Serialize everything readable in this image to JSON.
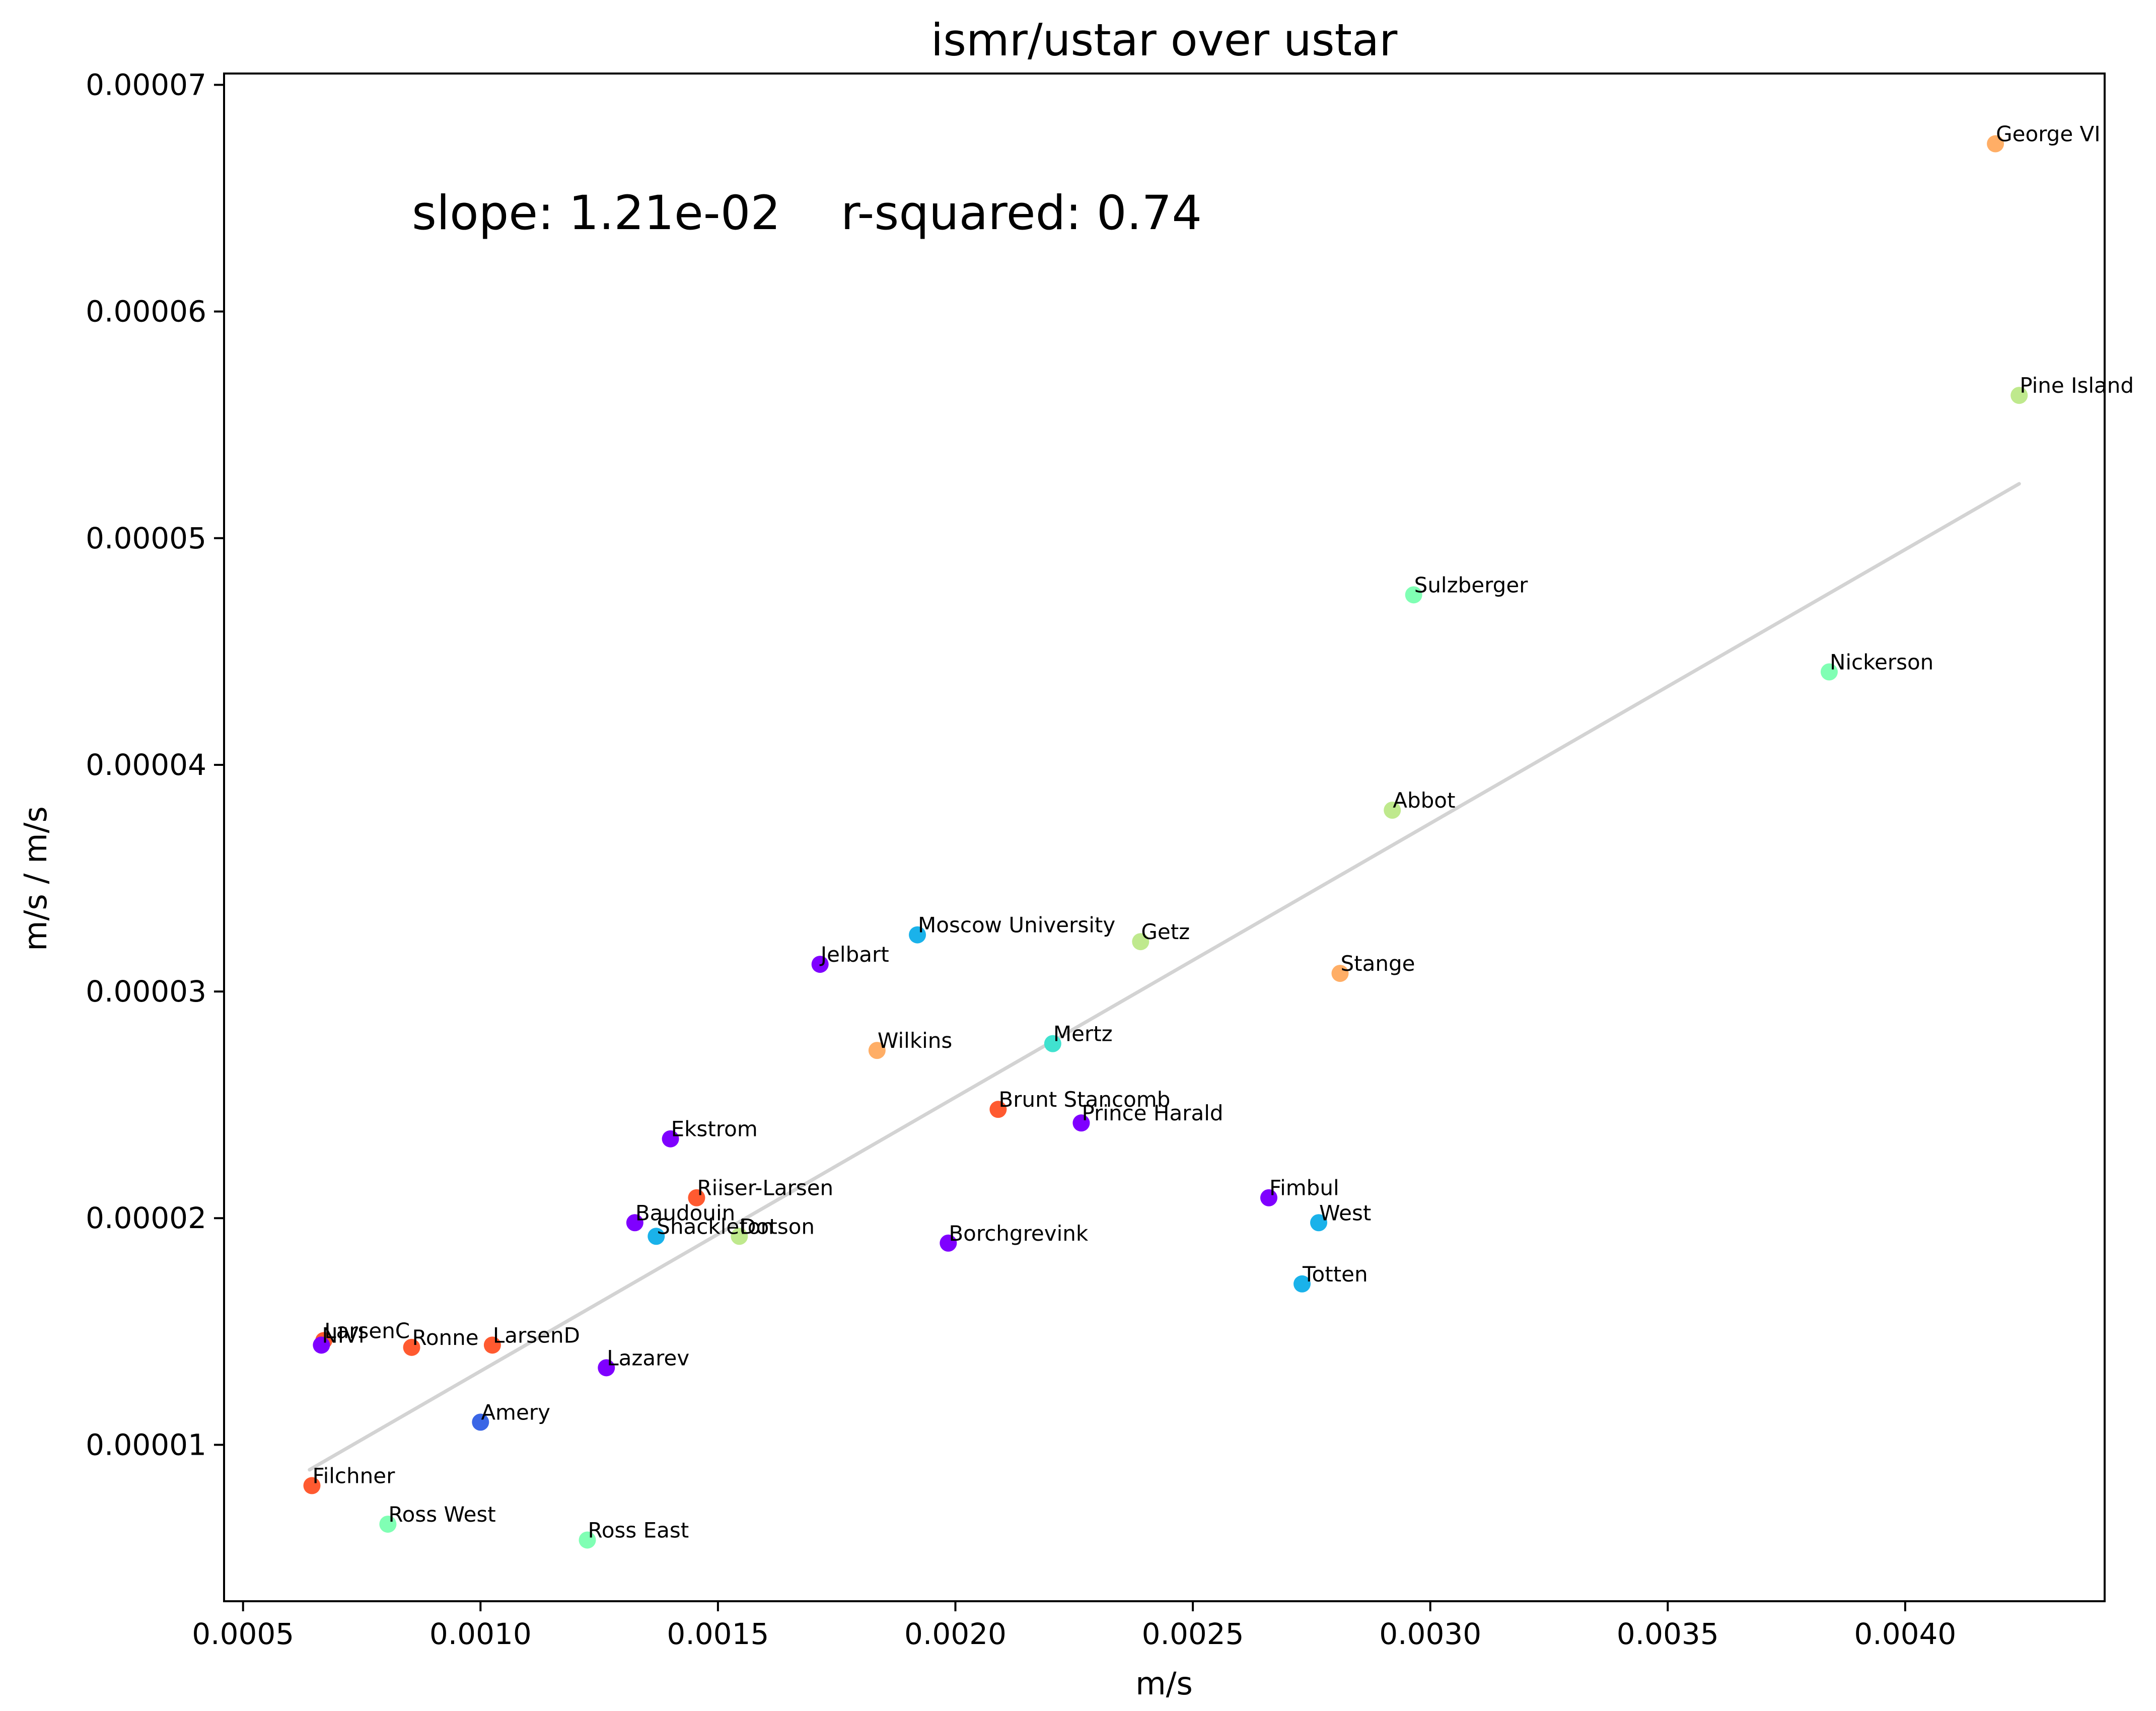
{
  "chart_data": {
    "type": "scatter",
    "title": "ismr/ustar over ustar",
    "xlabel": "m/s",
    "ylabel": "m/s / m/s",
    "xlim": [
      0.00046,
      0.00442
    ],
    "ylim": [
      3.1e-06,
      7.05e-05
    ],
    "xticks": [
      0.0005,
      0.001,
      0.0015,
      0.002,
      0.0025,
      0.003,
      0.0035,
      0.004
    ],
    "xtick_labels": [
      "0.0005",
      "0.0010",
      "0.0015",
      "0.0020",
      "0.0025",
      "0.0030",
      "0.0035",
      "0.0040"
    ],
    "yticks": [
      1e-05,
      2e-05,
      3e-05,
      4e-05,
      5e-05,
      6e-05,
      7e-05
    ],
    "ytick_labels": [
      "0.00001",
      "0.00002",
      "0.00003",
      "0.00004",
      "0.00005",
      "0.00006",
      "0.00007"
    ],
    "grid": false,
    "annotation": "slope: 1.21e-02    r-squared: 0.74",
    "fit_line": {
      "color": "#d3d3d3",
      "points": [
        [
          0.00064,
          8.9e-06
        ],
        [
          0.00424,
          5.24e-05
        ]
      ]
    },
    "points": [
      {
        "label": "George VI",
        "x": 0.00419,
        "y": 6.74e-05,
        "color": "#ffae66"
      },
      {
        "label": "Pine Island",
        "x": 0.00424,
        "y": 5.63e-05,
        "color": "#bfe98d"
      },
      {
        "label": "Sulzberger",
        "x": 0.002965,
        "y": 4.75e-05,
        "color": "#80ffb4"
      },
      {
        "label": "Nickerson",
        "x": 0.00384,
        "y": 4.41e-05,
        "color": "#80ffb4"
      },
      {
        "label": "Abbot",
        "x": 0.00292,
        "y": 3.8e-05,
        "color": "#bfe98d"
      },
      {
        "label": "Moscow University",
        "x": 0.00192,
        "y": 3.25e-05,
        "color": "#1ab2ea"
      },
      {
        "label": "Getz",
        "x": 0.00239,
        "y": 3.22e-05,
        "color": "#bfe98d"
      },
      {
        "label": "Jelbart",
        "x": 0.001715,
        "y": 3.12e-05,
        "color": "#7f00ff"
      },
      {
        "label": "Stange",
        "x": 0.00281,
        "y": 3.08e-05,
        "color": "#ffae66"
      },
      {
        "label": "Mertz",
        "x": 0.002205,
        "y": 2.77e-05,
        "color": "#40e2cf"
      },
      {
        "label": "Wilkins",
        "x": 0.001835,
        "y": 2.74e-05,
        "color": "#ffae66"
      },
      {
        "label": "Brunt Stancomb",
        "x": 0.00209,
        "y": 2.48e-05,
        "color": "#ff5a30"
      },
      {
        "label": "Prince Harald",
        "x": 0.002265,
        "y": 2.42e-05,
        "color": "#7f00ff"
      },
      {
        "label": "Ekstrom",
        "x": 0.0014,
        "y": 2.35e-05,
        "color": "#7f00ff"
      },
      {
        "label": "Fimbul",
        "x": 0.00266,
        "y": 2.09e-05,
        "color": "#7f00ff"
      },
      {
        "label": "Riiser-Larsen",
        "x": 0.001455,
        "y": 2.09e-05,
        "color": "#ff5a30"
      },
      {
        "label": "West",
        "x": 0.002765,
        "y": 1.98e-05,
        "color": "#1ab2ea"
      },
      {
        "label": "Baudouin",
        "x": 0.001325,
        "y": 1.98e-05,
        "color": "#7f00ff"
      },
      {
        "label": "Shackleton",
        "x": 0.00137,
        "y": 1.92e-05,
        "color": "#1ab2ea"
      },
      {
        "label": "Dotson",
        "x": 0.001545,
        "y": 1.92e-05,
        "color": "#bfe98d"
      },
      {
        "label": "Borchgrevink",
        "x": 0.001985,
        "y": 1.89e-05,
        "color": "#7f00ff"
      },
      {
        "label": "Totten",
        "x": 0.00273,
        "y": 1.71e-05,
        "color": "#1ab2ea"
      },
      {
        "label": "LarsenC",
        "x": 0.00067,
        "y": 1.46e-05,
        "color": "#ff5a30"
      },
      {
        "label": "NIVl",
        "x": 0.000665,
        "y": 1.44e-05,
        "color": "#7f00ff"
      },
      {
        "label": "Ronne",
        "x": 0.000855,
        "y": 1.43e-05,
        "color": "#ff5a30"
      },
      {
        "label": "LarsenD",
        "x": 0.001025,
        "y": 1.44e-05,
        "color": "#ff5a30"
      },
      {
        "label": "Lazarev",
        "x": 0.001265,
        "y": 1.34e-05,
        "color": "#7f00ff"
      },
      {
        "label": "Amery",
        "x": 0.001,
        "y": 1.1e-05,
        "color": "#3a66e6"
      },
      {
        "label": "Filchner",
        "x": 0.000645,
        "y": 8.2e-06,
        "color": "#ff5a30"
      },
      {
        "label": "Ross West",
        "x": 0.000805,
        "y": 6.5e-06,
        "color": "#80ffb4"
      },
      {
        "label": "Ross East",
        "x": 0.001225,
        "y": 5.8e-06,
        "color": "#80ffb4"
      }
    ]
  }
}
